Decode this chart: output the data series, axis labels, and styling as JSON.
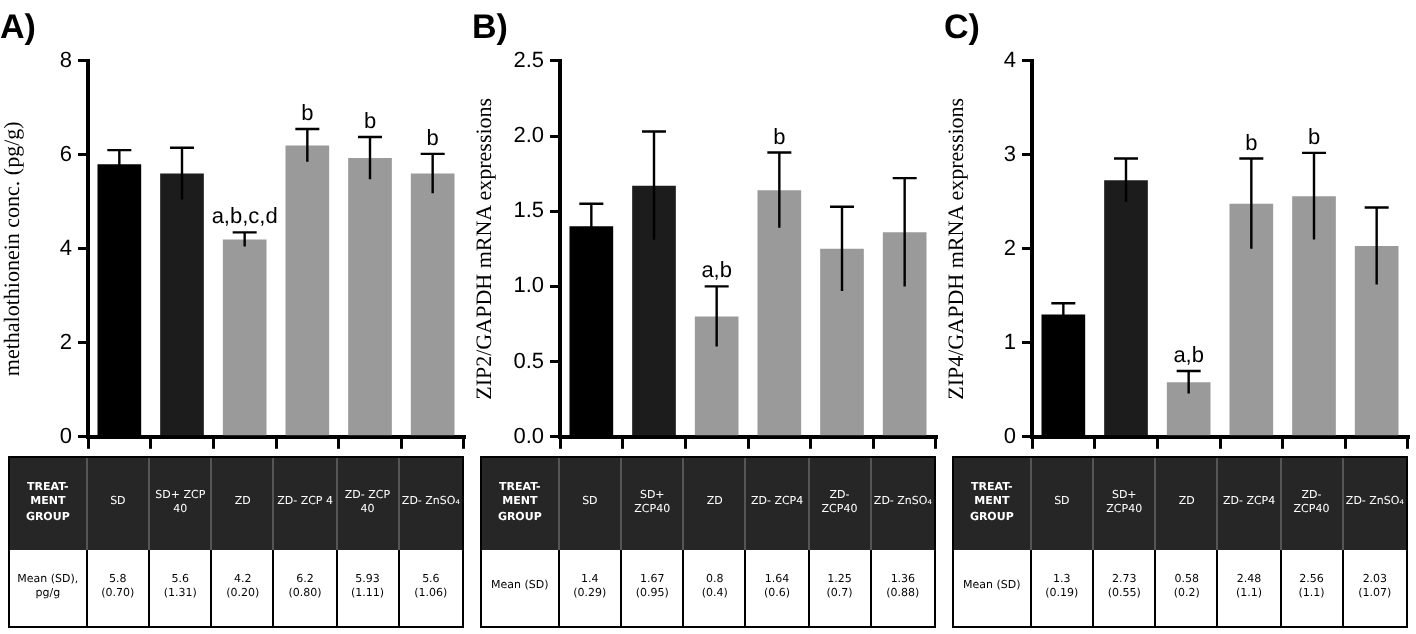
{
  "chart_data": [
    {
      "type": "bar",
      "title": "A)",
      "ylabel": "methalothionein conc. (pg/g)",
      "categories": [
        "SD",
        "SD+ ZCP 40",
        "ZD",
        "ZD- ZCP 4",
        "ZD- ZCP 40",
        "ZD- ZnSO₄"
      ],
      "values": [
        5.8,
        5.6,
        4.2,
        6.2,
        5.93,
        5.6
      ],
      "colors": [
        "#000000",
        "#1c1c1c",
        "#9a9a9a",
        "#9a9a9a",
        "#9a9a9a",
        "#9a9a9a"
      ],
      "errors": [
        0.3,
        0.55,
        0.15,
        0.35,
        0.45,
        0.42
      ],
      "value_labels": [
        "5.8 (0.70)",
        "5.6 (1.31)",
        "4.2 (0.20)",
        "6.2 (0.80)",
        "5.93 (1.11)",
        "5.6 (1.06)"
      ],
      "ylim": [
        0,
        8
      ],
      "yticks": [
        0,
        2,
        4,
        6,
        8
      ],
      "grid": false,
      "legend": false,
      "annotations": [
        "TREAT- MENT GROUP",
        "Mean (SD), pg/g",
        {
          "text": "a,b,c,d",
          "x": "ZD",
          "y": 4.35
        },
        {
          "text": "b",
          "x": "ZD- ZCP 4",
          "y": 6.55
        },
        {
          "text": "b",
          "x": "ZD- ZCP 40",
          "y": 6.38
        },
        {
          "text": "b",
          "x": "ZD- ZnSO₄",
          "y": 6.02
        }
      ]
    },
    {
      "type": "bar",
      "title": "B)",
      "ylabel": "ZIP2/GAPDH mRNA expressions",
      "categories": [
        "SD",
        "SD+ ZCP40",
        "ZD",
        "ZD- ZCP4",
        "ZD- ZCP40",
        "ZD- ZnSO₄"
      ],
      "values": [
        1.4,
        1.67,
        0.8,
        1.64,
        1.25,
        1.36
      ],
      "colors": [
        "#000000",
        "#1c1c1c",
        "#9a9a9a",
        "#9a9a9a",
        "#9a9a9a",
        "#9a9a9a"
      ],
      "errors": [
        0.15,
        0.36,
        0.2,
        0.25,
        0.28,
        0.36
      ],
      "value_labels": [
        "1.4 (0.29)",
        "1.67 (0.95)",
        "0.8 (0.4)",
        "1.64 (0.6)",
        "1.25 (0.7)",
        "1.36 (0.88)"
      ],
      "ylim": [
        0,
        2.5
      ],
      "yticks": [
        {
          "value": 0,
          "label": "0.0"
        },
        {
          "value": 0.5,
          "label": "0.5"
        },
        {
          "value": 1,
          "label": "1.0"
        },
        {
          "value": 1.5,
          "label": "1.5"
        },
        {
          "value": 2,
          "label": "2.0"
        },
        {
          "value": 2.5,
          "label": "2.5"
        }
      ],
      "grid": false,
      "legend": false,
      "annotations": [
        "TREAT- MENT GROUP",
        "Mean (SD)",
        {
          "text": "a,b",
          "x": "ZD",
          "y": 1.0
        },
        {
          "text": "b",
          "x": "ZD- ZCP4",
          "y": 1.89
        }
      ]
    },
    {
      "type": "bar",
      "title": "C)",
      "ylabel": "ZIP4/GAPDH mRNA expressions",
      "categories": [
        "SD",
        "SD+ ZCP40",
        "ZD",
        "ZD- ZCP4",
        "ZD- ZCP40",
        "ZD- ZnSO₄"
      ],
      "values": [
        1.3,
        2.73,
        0.58,
        2.48,
        2.56,
        2.03
      ],
      "colors": [
        "#000000",
        "#1c1c1c",
        "#9a9a9a",
        "#9a9a9a",
        "#9a9a9a",
        "#9a9a9a"
      ],
      "errors": [
        0.12,
        0.23,
        0.12,
        0.48,
        0.46,
        0.41
      ],
      "value_labels": [
        "1.3 (0.19)",
        "2.73 (0.55)",
        "0.58 (0.2)",
        "2.48 (1.1)",
        "2.56 (1.1)",
        "2.03 (1.07)"
      ],
      "ylim": [
        0,
        4
      ],
      "yticks": [
        0,
        1,
        2,
        3,
        4
      ],
      "grid": false,
      "legend": false,
      "annotations": [
        "TREAT- MENT GROUP",
        "Mean (SD)",
        {
          "text": "a,b",
          "x": "ZD",
          "y": 0.7
        },
        {
          "text": "b",
          "x": "ZD- ZCP4",
          "y": 2.96
        },
        {
          "text": "b",
          "x": "ZD- ZCP40",
          "y": 3.02
        }
      ]
    }
  ]
}
